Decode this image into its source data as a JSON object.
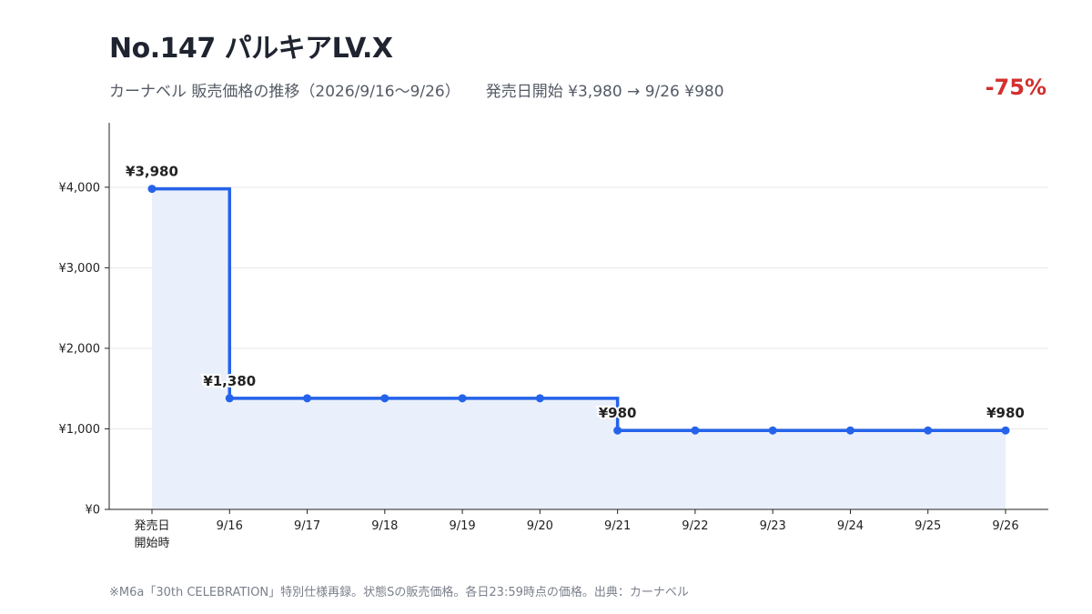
{
  "header": {
    "title": "No.147 パルキアLV.X",
    "subtitle": "カーナベル 販売価格の推移（2026/9/16〜9/26）",
    "summary": "発売日開始 ¥3,980 → 9/26 ¥980",
    "change": "-75%"
  },
  "footnote": "※M6a「30th CELEBRATION」特別仕様再録。状態Sの販売価格。各日23:59時点の価格。出典：カーナベル",
  "colors": {
    "line": "#2563eb",
    "fill": "#eaf0fb",
    "change": "#d32f2f",
    "grid": "#e6e6e6"
  },
  "chart_data": {
    "type": "line",
    "step": "after",
    "categories": [
      "発売日\n開始時",
      "9/16",
      "9/17",
      "9/18",
      "9/19",
      "9/20",
      "9/21",
      "9/22",
      "9/23",
      "9/24",
      "9/25",
      "9/26"
    ],
    "values": [
      3980,
      1380,
      1380,
      1380,
      1380,
      1380,
      980,
      980,
      980,
      980,
      980,
      980
    ],
    "ylim": [
      0,
      4800
    ],
    "yticks": [
      0,
      1000,
      2000,
      3000,
      4000
    ],
    "ytick_labels": [
      "¥0",
      "¥1,000",
      "¥2,000",
      "¥3,000",
      "¥4,000"
    ],
    "data_labels": [
      {
        "index": 0,
        "text": "¥3,980"
      },
      {
        "index": 1,
        "text": "¥1,380"
      },
      {
        "index": 6,
        "text": "¥980"
      },
      {
        "index": 11,
        "text": "¥980"
      }
    ],
    "grid": true,
    "area_fill": true
  }
}
